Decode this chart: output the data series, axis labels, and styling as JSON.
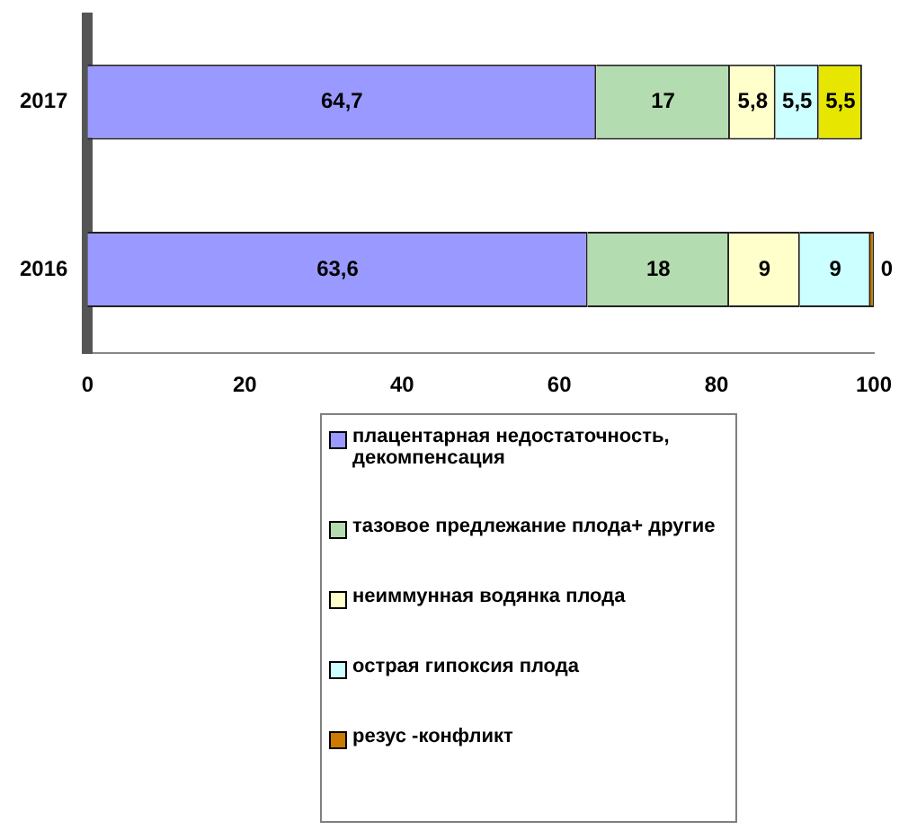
{
  "chart_data": {
    "type": "bar",
    "orientation": "horizontal",
    "stacked": true,
    "categories": [
      "2017",
      "2016"
    ],
    "xlim": [
      0,
      100
    ],
    "xticks": [
      0,
      20,
      40,
      60,
      80,
      100
    ],
    "grid": false,
    "legend": "bottom",
    "series": [
      {
        "name": "плацентарная недостаточность, декомпенсация",
        "color": "#9999ff",
        "values": [
          64.7,
          63.6
        ],
        "value_labels": [
          "64,7",
          "63,6"
        ]
      },
      {
        "name": "тазовое предлежание плода+ другие",
        "color": "#b3dcb0",
        "values": [
          17,
          18
        ],
        "value_labels": [
          "17",
          "18"
        ]
      },
      {
        "name": "неиммунная водянка плода",
        "color": "#ffffcc",
        "values": [
          5.8,
          9
        ],
        "value_labels": [
          "5,8",
          "9"
        ]
      },
      {
        "name": "острая гипоксия плода",
        "color": "#ccffff",
        "values": [
          5.5,
          9
        ],
        "value_labels": [
          "5,5",
          "9"
        ]
      },
      {
        "name": "резус -конфликт",
        "color": "#cc7a00",
        "colors": [
          "#e6e600",
          "#cc7a00"
        ],
        "values": [
          5.5,
          0
        ],
        "value_labels": [
          "5,5",
          "0"
        ]
      }
    ]
  }
}
